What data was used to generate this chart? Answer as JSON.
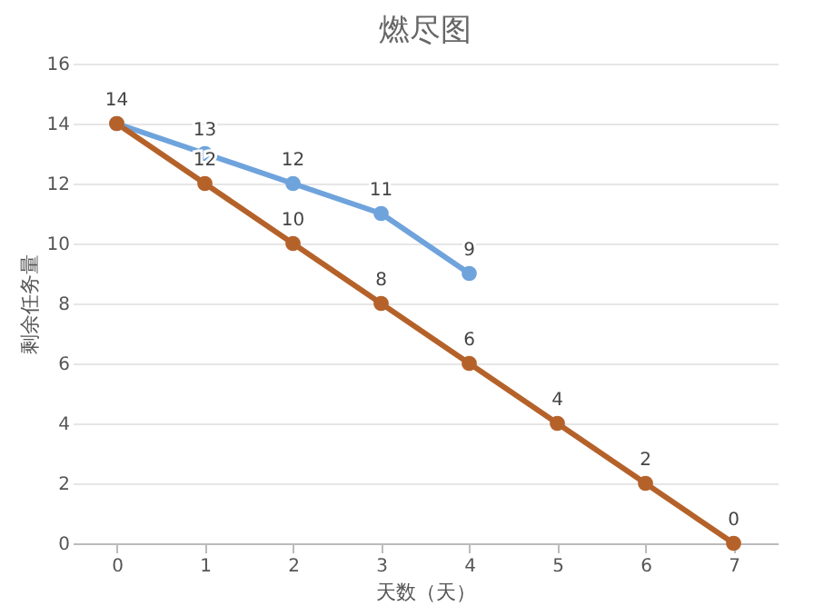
{
  "chart_data": {
    "type": "line",
    "title": "燃尽图",
    "xlabel": "天数（天）",
    "ylabel": "剩余任务量",
    "categories": [
      "0",
      "1",
      "2",
      "3",
      "4",
      "5",
      "6",
      "7"
    ],
    "series": [
      {
        "color": "#6fa3dc",
        "values": [
          14,
          13,
          12,
          11,
          9,
          null,
          null,
          null
        ],
        "value_labels": [
          null,
          "13",
          "12",
          "11",
          "9",
          null,
          null,
          null
        ]
      },
      {
        "color": "#b5622a",
        "values": [
          14,
          12,
          10,
          8,
          6,
          4,
          2,
          0
        ]
      }
    ],
    "ylim": [
      0,
      16
    ],
    "yticks": [
      0,
      2,
      4,
      6,
      8,
      10,
      12,
      14,
      16
    ],
    "grid": "y",
    "legend": false,
    "marker": "circle",
    "line_style": "solid",
    "data_labels": true
  }
}
